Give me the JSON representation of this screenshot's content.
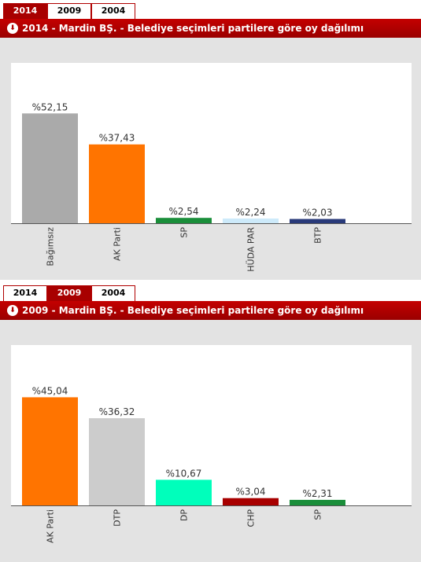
{
  "panels": [
    {
      "tabs": [
        {
          "label": "2014",
          "active": true
        },
        {
          "label": "2009",
          "active": false
        },
        {
          "label": "2004",
          "active": false
        }
      ],
      "title": "2014 - Mardin BŞ. - Belediye seçimleri partilere göre oy dağılımı",
      "icon": "download-circle-icon"
    },
    {
      "tabs": [
        {
          "label": "2014",
          "active": false
        },
        {
          "label": "2009",
          "active": true
        },
        {
          "label": "2004",
          "active": false
        }
      ],
      "title": "2009 - Mardin BŞ. - Belediye seçimleri partilere göre oy dağılımı",
      "icon": "download-circle-icon"
    }
  ],
  "chart_data": [
    {
      "type": "bar",
      "categories": [
        "Bağımsız",
        "AK Parti",
        "SP",
        "HÜDA PAR",
        "BTP"
      ],
      "values": [
        52.15,
        37.43,
        2.54,
        2.24,
        2.03
      ],
      "value_labels": [
        "%52,15",
        "%37,43",
        "%2,54",
        "%2,24",
        "%2,03"
      ],
      "colors": [
        "#aaaaaa",
        "#ff7400",
        "#1a8e3a",
        "#cdeafa",
        "#293a7a"
      ],
      "ylim": [
        0,
        54.5
      ],
      "grid": false,
      "legend": "none"
    },
    {
      "type": "bar",
      "categories": [
        "AK Parti",
        "DTP",
        "DP",
        "CHP",
        "SP"
      ],
      "values": [
        45.04,
        36.32,
        10.67,
        3.04,
        2.31
      ],
      "value_labels": [
        "%45,04",
        "%36,32",
        "%10,67",
        "%3,04",
        "%2,31"
      ],
      "colors": [
        "#ff7400",
        "#cccccc",
        "#00ffbb",
        "#a80000",
        "#1a8e3a"
      ],
      "ylim": [
        0,
        47.8
      ],
      "grid": false,
      "legend": "none"
    }
  ]
}
